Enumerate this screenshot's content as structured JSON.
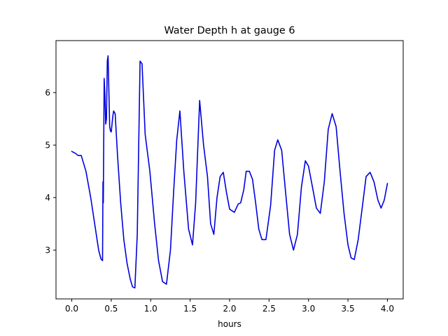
{
  "chart_data": {
    "type": "line",
    "title": "Water Depth h at gauge 6",
    "xlabel": "hours",
    "ylabel": "",
    "xlim": [
      -0.2,
      4.2
    ],
    "ylim": [
      2.07,
      6.99
    ],
    "x_ticks": [
      0.0,
      0.5,
      1.0,
      1.5,
      2.0,
      2.5,
      3.0,
      3.5,
      4.0
    ],
    "x_tick_labels": [
      "0.0",
      "0.5",
      "1.0",
      "1.5",
      "2.0",
      "2.5",
      "3.0",
      "3.5",
      "4.0"
    ],
    "y_ticks": [
      3,
      4,
      5,
      6
    ],
    "y_tick_labels": [
      "3",
      "4",
      "5",
      "6"
    ],
    "grid": false,
    "legend": "none",
    "series": [
      {
        "color": "#0000dd",
        "x": [
          0.0,
          0.05,
          0.08,
          0.12,
          0.18,
          0.24,
          0.3,
          0.34,
          0.37,
          0.39,
          0.395,
          0.4,
          0.41,
          0.42,
          0.43,
          0.44,
          0.45,
          0.46,
          0.48,
          0.49,
          0.5,
          0.52,
          0.53,
          0.55,
          0.58,
          0.62,
          0.66,
          0.7,
          0.74,
          0.77,
          0.8,
          0.83,
          0.865,
          0.89,
          0.93,
          0.99,
          1.05,
          1.1,
          1.15,
          1.2,
          1.25,
          1.29,
          1.33,
          1.37,
          1.42,
          1.48,
          1.53,
          1.57,
          1.62,
          1.67,
          1.72,
          1.76,
          1.8,
          1.84,
          1.88,
          1.92,
          1.96,
          2.0,
          2.06,
          2.11,
          2.14,
          2.18,
          2.21,
          2.25,
          2.29,
          2.33,
          2.37,
          2.41,
          2.46,
          2.52,
          2.57,
          2.61,
          2.66,
          2.71,
          2.76,
          2.81,
          2.86,
          2.91,
          2.96,
          3.0,
          3.05,
          3.1,
          3.15,
          3.2,
          3.25,
          3.3,
          3.35,
          3.4,
          3.45,
          3.5,
          3.54,
          3.58,
          3.63,
          3.68,
          3.73,
          3.78,
          3.83,
          3.88,
          3.92,
          3.96,
          4.0
        ],
        "y": [
          4.88,
          4.84,
          4.8,
          4.8,
          4.5,
          4.0,
          3.4,
          3.0,
          2.83,
          2.8,
          4.3,
          3.9,
          6.27,
          5.95,
          5.4,
          5.5,
          6.6,
          6.7,
          5.35,
          5.27,
          5.25,
          5.55,
          5.65,
          5.6,
          4.8,
          3.9,
          3.2,
          2.75,
          2.45,
          2.3,
          2.28,
          3.3,
          6.6,
          6.55,
          5.2,
          4.5,
          3.5,
          2.8,
          2.4,
          2.35,
          3.0,
          4.1,
          5.1,
          5.65,
          4.5,
          3.4,
          3.1,
          3.9,
          5.85,
          5.0,
          4.4,
          3.5,
          3.3,
          4.0,
          4.4,
          4.48,
          4.1,
          3.78,
          3.72,
          3.88,
          3.9,
          4.15,
          4.5,
          4.5,
          4.35,
          3.9,
          3.4,
          3.2,
          3.2,
          3.85,
          4.9,
          5.1,
          4.9,
          4.1,
          3.3,
          3.0,
          3.3,
          4.2,
          4.7,
          4.6,
          4.2,
          3.8,
          3.7,
          4.3,
          5.3,
          5.6,
          5.35,
          4.5,
          3.7,
          3.1,
          2.85,
          2.82,
          3.2,
          3.8,
          4.4,
          4.48,
          4.3,
          3.95,
          3.8,
          3.95,
          4.27
        ]
      }
    ]
  }
}
